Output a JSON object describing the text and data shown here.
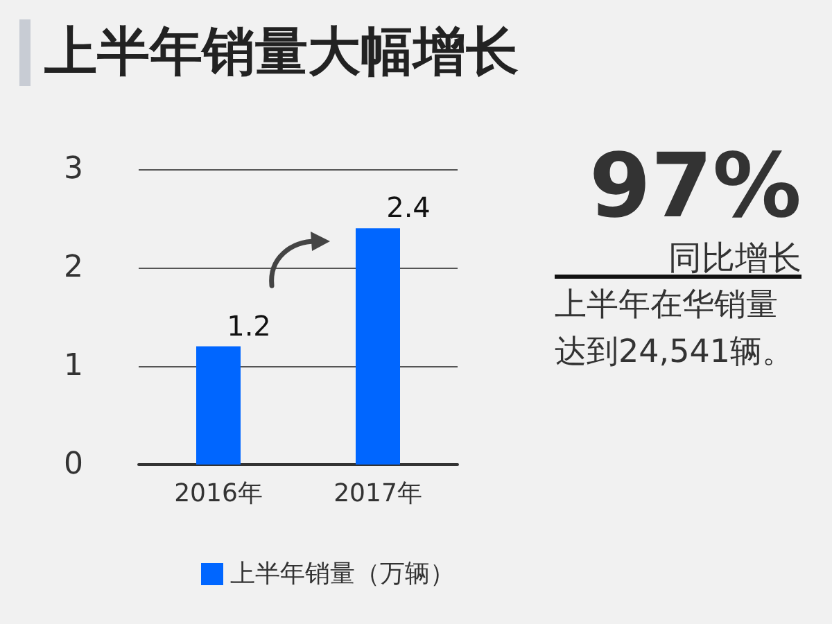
{
  "chart_data": {
    "type": "bar",
    "title": "上半年销量大幅增长",
    "categories": [
      "2016年",
      "2017年"
    ],
    "series": [
      {
        "name": "上半年销量（万辆）",
        "color": "#0066ff",
        "values": [
          1.2,
          2.4
        ]
      }
    ],
    "ylim": [
      0,
      3
    ],
    "yticks": [
      0,
      1,
      2,
      3
    ],
    "grid": "y",
    "legend": "bottom",
    "data_labels": true,
    "annotations": [
      "97%",
      "同比增长",
      "上半年在华销量达到24,541辆。"
    ]
  }
}
